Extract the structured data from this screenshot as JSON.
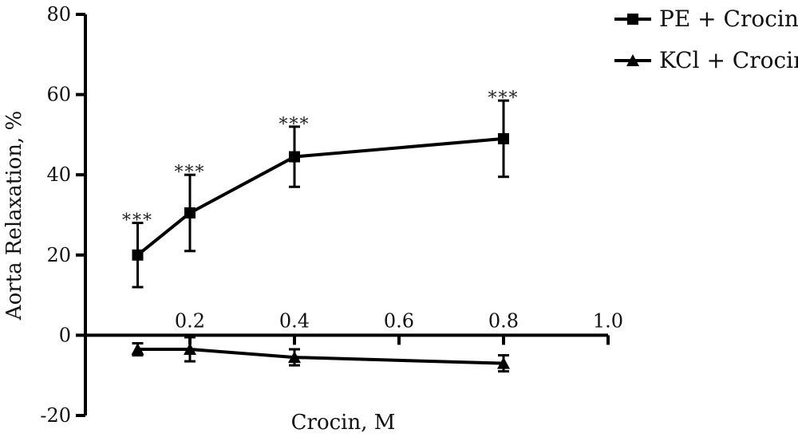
{
  "chart_data": {
    "type": "line",
    "xlabel": "Crocin, M",
    "ylabel": "Aorta Relaxation, %",
    "xlim": [
      0,
      1.0
    ],
    "ylim": [
      -20,
      80
    ],
    "x_ticks": [
      0.2,
      0.4,
      0.6,
      0.8,
      1.0
    ],
    "x_tick_labels": [
      "0.2",
      "0.4",
      "0.6",
      "0.8",
      "1.0"
    ],
    "y_ticks": [
      -20,
      0,
      20,
      40,
      60,
      80
    ],
    "y_tick_labels": [
      "-20",
      "0",
      "20",
      "40",
      "60",
      "80"
    ],
    "grid": false,
    "legend_position": "top-right",
    "series": [
      {
        "name": "PE + Crocin",
        "marker": "square",
        "color": "#000000",
        "x": [
          0.1,
          0.2,
          0.4,
          0.8
        ],
        "y": [
          20,
          30.5,
          44.5,
          49
        ],
        "error": [
          8,
          9.5,
          7.5,
          9.5
        ],
        "annotations": [
          "***",
          "***",
          "***",
          "***"
        ]
      },
      {
        "name": "KCl + Crocin",
        "marker": "triangle",
        "color": "#000000",
        "x": [
          0.1,
          0.2,
          0.4,
          0.8
        ],
        "y": [
          -3.5,
          -3.5,
          -5.5,
          -7
        ],
        "error": [
          1.5,
          3.0,
          2.0,
          2.0
        ],
        "annotations": []
      }
    ]
  }
}
